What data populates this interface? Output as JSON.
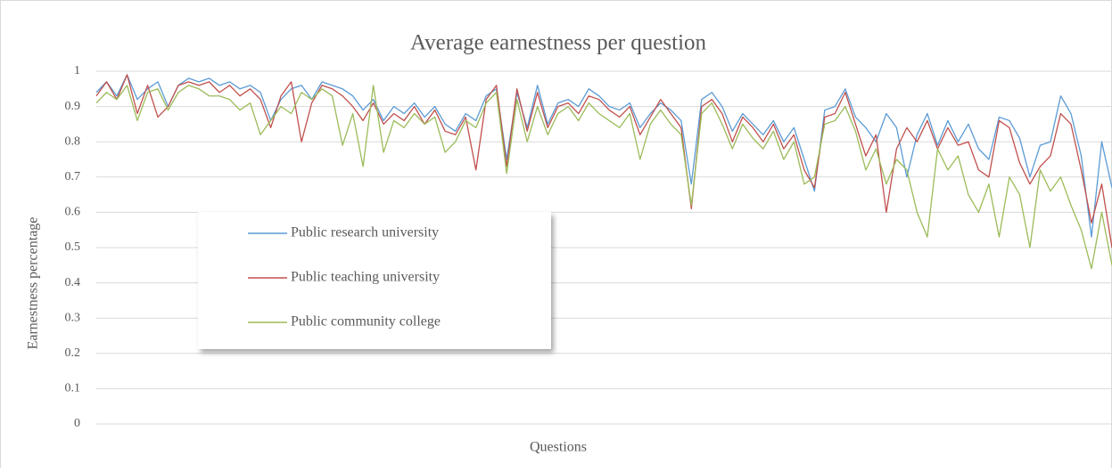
{
  "chart_data": {
    "type": "line",
    "title": "Average earnestness per question",
    "xlabel": "Questions",
    "ylabel": "Earnestness  percentage",
    "ylim": [
      0,
      1
    ],
    "yticks": [
      0,
      0.1,
      0.2,
      0.3,
      0.4,
      0.5,
      0.6,
      0.7,
      0.8,
      0.9,
      1
    ],
    "grid": true,
    "series": [
      {
        "name": "Public research university",
        "color": "#5b9bd5",
        "values": [
          0.94,
          0.97,
          0.93,
          0.99,
          0.92,
          0.95,
          0.97,
          0.9,
          0.96,
          0.98,
          0.97,
          0.98,
          0.96,
          0.97,
          0.95,
          0.96,
          0.94,
          0.86,
          0.92,
          0.95,
          0.96,
          0.92,
          0.97,
          0.96,
          0.95,
          0.93,
          0.89,
          0.92,
          0.86,
          0.9,
          0.88,
          0.91,
          0.87,
          0.9,
          0.85,
          0.83,
          0.88,
          0.86,
          0.93,
          0.95,
          0.75,
          0.94,
          0.84,
          0.96,
          0.85,
          0.91,
          0.92,
          0.9,
          0.95,
          0.93,
          0.9,
          0.89,
          0.91,
          0.84,
          0.88,
          0.91,
          0.89,
          0.86,
          0.68,
          0.92,
          0.94,
          0.9,
          0.83,
          0.88,
          0.85,
          0.82,
          0.86,
          0.8,
          0.84,
          0.75,
          0.66,
          0.89,
          0.9,
          0.95,
          0.87,
          0.84,
          0.8,
          0.88,
          0.84,
          0.7,
          0.82,
          0.88,
          0.79,
          0.86,
          0.8,
          0.85,
          0.78,
          0.75,
          0.87,
          0.86,
          0.81,
          0.7,
          0.79,
          0.8,
          0.93,
          0.88,
          0.76,
          0.53,
          0.8,
          0.67
        ]
      },
      {
        "name": "Public teaching university",
        "color": "#c0504d",
        "values": [
          0.93,
          0.97,
          0.92,
          0.99,
          0.88,
          0.96,
          0.87,
          0.9,
          0.96,
          0.97,
          0.96,
          0.97,
          0.94,
          0.96,
          0.93,
          0.95,
          0.92,
          0.84,
          0.93,
          0.97,
          0.8,
          0.91,
          0.96,
          0.95,
          0.93,
          0.9,
          0.86,
          0.91,
          0.85,
          0.88,
          0.86,
          0.9,
          0.85,
          0.89,
          0.83,
          0.82,
          0.87,
          0.72,
          0.92,
          0.96,
          0.73,
          0.95,
          0.83,
          0.94,
          0.84,
          0.9,
          0.91,
          0.88,
          0.93,
          0.92,
          0.89,
          0.87,
          0.9,
          0.82,
          0.87,
          0.92,
          0.88,
          0.84,
          0.61,
          0.9,
          0.92,
          0.88,
          0.8,
          0.87,
          0.84,
          0.8,
          0.85,
          0.78,
          0.82,
          0.72,
          0.67,
          0.87,
          0.88,
          0.94,
          0.85,
          0.76,
          0.82,
          0.6,
          0.78,
          0.84,
          0.8,
          0.86,
          0.78,
          0.84,
          0.79,
          0.8,
          0.72,
          0.7,
          0.86,
          0.84,
          0.74,
          0.68,
          0.73,
          0.76,
          0.88,
          0.85,
          0.72,
          0.57,
          0.68,
          0.5
        ]
      },
      {
        "name": "Public community college",
        "color": "#9bbb59",
        "values": [
          0.91,
          0.94,
          0.92,
          0.96,
          0.86,
          0.94,
          0.95,
          0.89,
          0.94,
          0.96,
          0.95,
          0.93,
          0.93,
          0.92,
          0.89,
          0.91,
          0.82,
          0.86,
          0.9,
          0.88,
          0.94,
          0.92,
          0.95,
          0.93,
          0.79,
          0.88,
          0.73,
          0.96,
          0.77,
          0.86,
          0.84,
          0.88,
          0.85,
          0.87,
          0.77,
          0.8,
          0.86,
          0.84,
          0.91,
          0.94,
          0.71,
          0.92,
          0.8,
          0.9,
          0.82,
          0.88,
          0.9,
          0.86,
          0.91,
          0.88,
          0.86,
          0.84,
          0.88,
          0.75,
          0.85,
          0.89,
          0.85,
          0.82,
          0.62,
          0.88,
          0.91,
          0.85,
          0.78,
          0.85,
          0.81,
          0.78,
          0.83,
          0.75,
          0.8,
          0.68,
          0.7,
          0.85,
          0.86,
          0.9,
          0.83,
          0.72,
          0.78,
          0.68,
          0.75,
          0.72,
          0.6,
          0.53,
          0.78,
          0.72,
          0.76,
          0.65,
          0.6,
          0.68,
          0.53,
          0.7,
          0.65,
          0.5,
          0.72,
          0.66,
          0.7,
          0.62,
          0.55,
          0.44,
          0.6,
          0.45
        ]
      }
    ]
  }
}
